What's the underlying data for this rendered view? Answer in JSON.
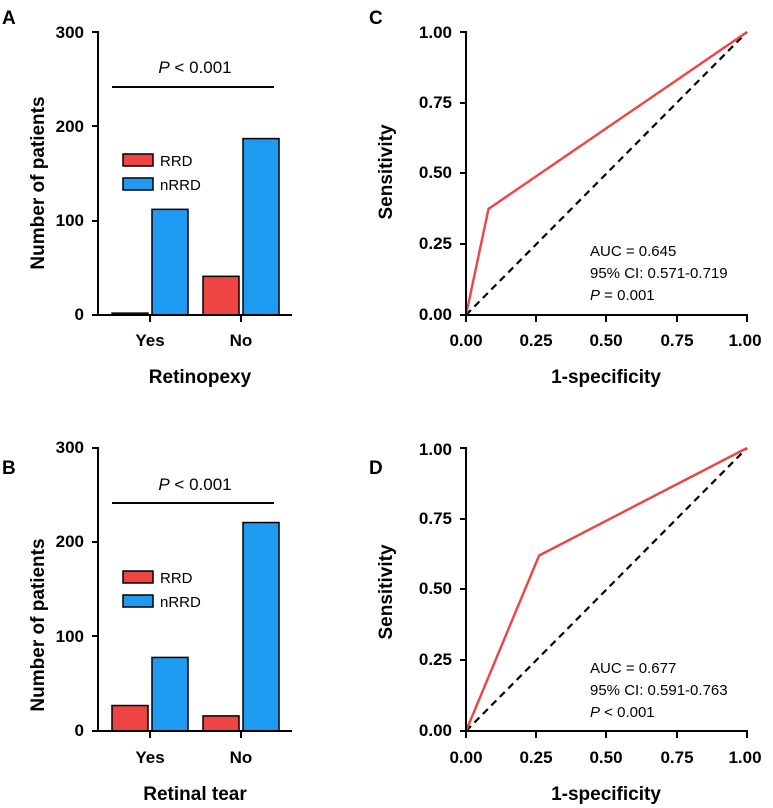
{
  "chart_data": [
    {
      "panel": "A",
      "type": "bar",
      "categories": [
        "Yes",
        "No"
      ],
      "series": [
        {
          "name": "RRD",
          "color": "#ef4444",
          "values": [
            2,
            41
          ]
        },
        {
          "name": "nRRD",
          "color": "#1e9bf0",
          "values": [
            112,
            187
          ]
        }
      ],
      "xlabel": "Retinopexy",
      "ylabel": "Number of patients",
      "ylim": [
        0,
        300
      ],
      "yticks": [
        "0",
        "100",
        "200",
        "300"
      ],
      "legend": [
        {
          "label": "RRD",
          "color": "#ef4444"
        },
        {
          "label": "nRRD",
          "color": "#1e9bf0"
        }
      ],
      "significance": {
        "p": "P",
        "text": " < 0.001"
      }
    },
    {
      "panel": "B",
      "type": "bar",
      "categories": [
        "Yes",
        "No"
      ],
      "series": [
        {
          "name": "RRD",
          "color": "#ef4444",
          "values": [
            27,
            16
          ]
        },
        {
          "name": "nRRD",
          "color": "#1e9bf0",
          "values": [
            78,
            221
          ]
        }
      ],
      "xlabel": "Retinal tear",
      "ylabel": "Number of patients",
      "ylim": [
        0,
        300
      ],
      "yticks": [
        "0",
        "100",
        "200",
        "300"
      ],
      "legend": [
        {
          "label": "RRD",
          "color": "#ef4444"
        },
        {
          "label": "nRRD",
          "color": "#1e9bf0"
        }
      ],
      "significance": {
        "p": "P",
        "text": " < 0.001"
      }
    },
    {
      "panel": "C",
      "type": "line",
      "xlabel": "1-specificity",
      "ylabel": "Sensitivity",
      "xlim": [
        0,
        1
      ],
      "ylim": [
        0,
        1
      ],
      "ticks": [
        "0.00",
        "0.25",
        "0.50",
        "0.75",
        "1.00"
      ],
      "tick_values": [
        0,
        0.25,
        0.5,
        0.75,
        1
      ],
      "series": [
        {
          "name": "ROC",
          "color": "#ef4444",
          "x": [
            0,
            0.08,
            1
          ],
          "y": [
            0,
            0.375,
            1
          ]
        },
        {
          "name": "Reference",
          "color": "#000000",
          "dashed": true,
          "x": [
            0,
            1
          ],
          "y": [
            0,
            1
          ]
        }
      ],
      "annotation": {
        "auc": "AUC = 0.645",
        "ci": "95% CI: 0.571-0.719",
        "p": "P",
        "p_text": " = 0.001"
      }
    },
    {
      "panel": "D",
      "type": "line",
      "xlabel": "1-specificity",
      "ylabel": "Sensitivity",
      "xlim": [
        0,
        1
      ],
      "ylim": [
        0,
        1
      ],
      "ticks": [
        "0.00",
        "0.25",
        "0.50",
        "0.75",
        "1.00"
      ],
      "tick_values": [
        0,
        0.25,
        0.5,
        0.75,
        1
      ],
      "series": [
        {
          "name": "ROC",
          "color": "#ef4444",
          "x": [
            0,
            0.26,
            1
          ],
          "y": [
            0,
            0.62,
            1
          ]
        },
        {
          "name": "Reference",
          "color": "#000000",
          "dashed": true,
          "x": [
            0,
            1
          ],
          "y": [
            0,
            1
          ]
        }
      ],
      "annotation": {
        "auc": "AUC = 0.677",
        "ci": "95% CI: 0.591-0.763",
        "p": "P",
        "p_text": " < 0.001"
      }
    }
  ]
}
